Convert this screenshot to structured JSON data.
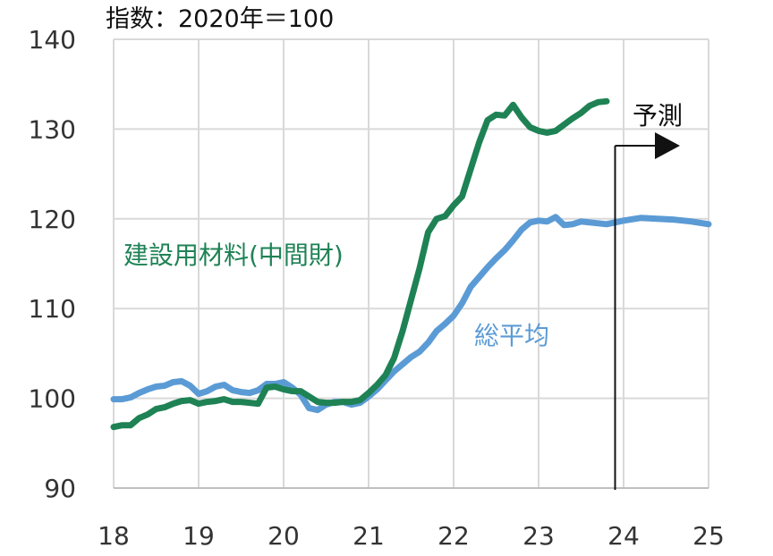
{
  "chart_data": {
    "type": "line",
    "unit_label": "指数：2020年＝100",
    "ylim": [
      90,
      140
    ],
    "yticks": [
      90,
      100,
      110,
      120,
      130,
      140
    ],
    "xlim": [
      2018,
      2025
    ],
    "xticks": [
      2018,
      2019,
      2020,
      2021,
      2022,
      2023,
      2024,
      2025
    ],
    "xtick_labels": [
      "18",
      "19",
      "20",
      "21",
      "22",
      "23",
      "24",
      "25"
    ],
    "grid": true,
    "forecast": {
      "label": "予測",
      "start": 2023.9
    },
    "series": [
      {
        "name": "建設用材料(中間財)",
        "color": "#1e8255",
        "points": [
          [
            2018.0,
            96.8
          ],
          [
            2018.1,
            97.0
          ],
          [
            2018.2,
            97.0
          ],
          [
            2018.3,
            97.8
          ],
          [
            2018.4,
            98.2
          ],
          [
            2018.5,
            98.8
          ],
          [
            2018.6,
            99.0
          ],
          [
            2018.7,
            99.4
          ],
          [
            2018.8,
            99.7
          ],
          [
            2018.9,
            99.8
          ],
          [
            2019.0,
            99.4
          ],
          [
            2019.1,
            99.6
          ],
          [
            2019.2,
            99.7
          ],
          [
            2019.3,
            99.9
          ],
          [
            2019.4,
            99.6
          ],
          [
            2019.5,
            99.6
          ],
          [
            2019.6,
            99.5
          ],
          [
            2019.7,
            99.4
          ],
          [
            2019.8,
            101.2
          ],
          [
            2019.9,
            101.3
          ],
          [
            2020.0,
            101.0
          ],
          [
            2020.1,
            100.8
          ],
          [
            2020.2,
            100.8
          ],
          [
            2020.3,
            100.2
          ],
          [
            2020.4,
            99.6
          ],
          [
            2020.5,
            99.5
          ],
          [
            2020.6,
            99.5
          ],
          [
            2020.7,
            99.6
          ],
          [
            2020.8,
            99.6
          ],
          [
            2020.9,
            99.8
          ],
          [
            2021.0,
            100.6
          ],
          [
            2021.1,
            101.5
          ],
          [
            2021.2,
            102.6
          ],
          [
            2021.3,
            104.5
          ],
          [
            2021.4,
            107.5
          ],
          [
            2021.5,
            111.0
          ],
          [
            2021.6,
            114.5
          ],
          [
            2021.7,
            118.5
          ],
          [
            2021.8,
            120.0
          ],
          [
            2021.9,
            120.3
          ],
          [
            2022.0,
            121.5
          ],
          [
            2022.1,
            122.5
          ],
          [
            2022.2,
            125.5
          ],
          [
            2022.3,
            128.5
          ],
          [
            2022.4,
            131.0
          ],
          [
            2022.5,
            131.6
          ],
          [
            2022.6,
            131.5
          ],
          [
            2022.7,
            132.7
          ],
          [
            2022.8,
            131.3
          ],
          [
            2022.9,
            130.2
          ],
          [
            2023.0,
            129.8
          ],
          [
            2023.1,
            129.6
          ],
          [
            2023.2,
            129.8
          ],
          [
            2023.3,
            130.5
          ],
          [
            2023.4,
            131.2
          ],
          [
            2023.5,
            131.8
          ],
          [
            2023.6,
            132.6
          ],
          [
            2023.7,
            133.0
          ],
          [
            2023.8,
            133.1
          ]
        ]
      },
      {
        "name": "総平均",
        "color": "#5b9bd5",
        "points": [
          [
            2018.0,
            99.9
          ],
          [
            2018.1,
            99.9
          ],
          [
            2018.2,
            100.1
          ],
          [
            2018.3,
            100.6
          ],
          [
            2018.4,
            101.0
          ],
          [
            2018.5,
            101.3
          ],
          [
            2018.6,
            101.4
          ],
          [
            2018.7,
            101.8
          ],
          [
            2018.8,
            101.9
          ],
          [
            2018.9,
            101.4
          ],
          [
            2019.0,
            100.5
          ],
          [
            2019.1,
            100.8
          ],
          [
            2019.2,
            101.3
          ],
          [
            2019.3,
            101.5
          ],
          [
            2019.4,
            100.9
          ],
          [
            2019.5,
            100.7
          ],
          [
            2019.6,
            100.6
          ],
          [
            2019.7,
            100.9
          ],
          [
            2019.8,
            101.6
          ],
          [
            2019.9,
            101.6
          ],
          [
            2020.0,
            101.8
          ],
          [
            2020.1,
            101.2
          ],
          [
            2020.2,
            100.4
          ],
          [
            2020.3,
            98.9
          ],
          [
            2020.4,
            98.7
          ],
          [
            2020.5,
            99.3
          ],
          [
            2020.6,
            99.6
          ],
          [
            2020.7,
            99.6
          ],
          [
            2020.8,
            99.3
          ],
          [
            2020.9,
            99.5
          ],
          [
            2021.0,
            100.2
          ],
          [
            2021.1,
            101.0
          ],
          [
            2021.2,
            102.0
          ],
          [
            2021.3,
            103.0
          ],
          [
            2021.4,
            103.8
          ],
          [
            2021.5,
            104.6
          ],
          [
            2021.6,
            105.2
          ],
          [
            2021.7,
            106.2
          ],
          [
            2021.8,
            107.5
          ],
          [
            2021.9,
            108.3
          ],
          [
            2022.0,
            109.2
          ],
          [
            2022.1,
            110.6
          ],
          [
            2022.2,
            112.4
          ],
          [
            2022.3,
            113.5
          ],
          [
            2022.4,
            114.6
          ],
          [
            2022.5,
            115.6
          ],
          [
            2022.6,
            116.5
          ],
          [
            2022.7,
            117.6
          ],
          [
            2022.8,
            118.8
          ],
          [
            2022.9,
            119.6
          ],
          [
            2023.0,
            119.8
          ],
          [
            2023.1,
            119.7
          ],
          [
            2023.2,
            120.2
          ],
          [
            2023.3,
            119.3
          ],
          [
            2023.4,
            119.4
          ],
          [
            2023.5,
            119.7
          ],
          [
            2023.6,
            119.6
          ],
          [
            2023.7,
            119.5
          ],
          [
            2023.8,
            119.4
          ],
          [
            2023.9,
            119.6
          ],
          [
            2024.0,
            119.8
          ],
          [
            2024.2,
            120.1
          ],
          [
            2024.4,
            120.0
          ],
          [
            2024.6,
            119.9
          ],
          [
            2024.8,
            119.7
          ],
          [
            2025.0,
            119.4
          ]
        ]
      }
    ]
  }
}
